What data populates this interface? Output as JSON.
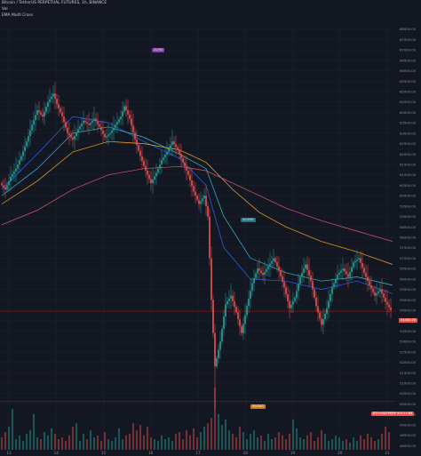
{
  "header": {
    "symbol_line": "Bitcoin / TetherUS PERPETUAL FUTURES, 1h, BINANCE",
    "volume_label": "Vol",
    "indicator_label": "EMA Multi Cross"
  },
  "badges": {
    "top_marker": "20/50",
    "mid_marker": "20/200",
    "vol_marker": "50/200",
    "price_tag": "54450.00",
    "pair_tag": "BTCUSDTPERP",
    "pair_price": "50111.88"
  },
  "colors": {
    "background": "#131722",
    "grid": "#1e2230",
    "up": "#26a69a",
    "down": "#ef5350",
    "ema_fast": "#2962ff",
    "ema_mid": "#26c6da",
    "ema_slow": "#f5a623",
    "ema_long": "#e0556a",
    "axis_text": "#8a8f9c"
  },
  "chart_data": {
    "type": "candlestick",
    "x_ticks": [
      "13",
      "14",
      "15",
      "16",
      "17",
      "18",
      "19",
      "20",
      "21"
    ],
    "y_ticks": [
      48000,
      48500,
      49000,
      49500,
      50000,
      50500,
      51000,
      51500,
      52000,
      52500,
      53000,
      53500,
      54000,
      54500,
      55000,
      55500,
      56000,
      56500,
      57000,
      57500,
      58000,
      58500,
      59000,
      59500,
      60000,
      60500,
      61000,
      61500,
      62000,
      62500,
      63000,
      63500,
      64000,
      64500,
      65000,
      65500,
      66000,
      66500,
      67000,
      67500,
      68000
    ],
    "ylim": [
      47800,
      68200
    ],
    "price_path": [
      [
        0,
        60600
      ],
      [
        3,
        60300
      ],
      [
        6,
        60900
      ],
      [
        9,
        61300
      ],
      [
        12,
        61900
      ],
      [
        15,
        62600
      ],
      [
        18,
        63400
      ],
      [
        21,
        64100
      ],
      [
        24,
        63800
      ],
      [
        27,
        64500
      ],
      [
        30,
        64900
      ],
      [
        32,
        64400
      ],
      [
        35,
        63800
      ],
      [
        38,
        63000
      ],
      [
        41,
        62700
      ],
      [
        44,
        63200
      ],
      [
        47,
        63600
      ],
      [
        50,
        63400
      ],
      [
        53,
        63700
      ],
      [
        56,
        63300
      ],
      [
        59,
        62800
      ],
      [
        62,
        63000
      ],
      [
        65,
        63400
      ],
      [
        68,
        63800
      ],
      [
        70,
        64300
      ],
      [
        73,
        63700
      ],
      [
        76,
        62700
      ],
      [
        79,
        61900
      ],
      [
        82,
        61200
      ],
      [
        85,
        60600
      ],
      [
        88,
        61100
      ],
      [
        91,
        61700
      ],
      [
        94,
        62100
      ],
      [
        97,
        62600
      ],
      [
        100,
        62200
      ],
      [
        103,
        61600
      ],
      [
        106,
        61000
      ],
      [
        109,
        60200
      ],
      [
        112,
        59600
      ],
      [
        115,
        60000
      ],
      [
        117,
        59000
      ],
      [
        119,
        55000
      ],
      [
        121,
        51800
      ],
      [
        124,
        53000
      ],
      [
        127,
        54800
      ],
      [
        130,
        55200
      ],
      [
        133,
        54400
      ],
      [
        136,
        53400
      ],
      [
        139,
        54700
      ],
      [
        142,
        55800
      ],
      [
        145,
        56500
      ],
      [
        148,
        56200
      ],
      [
        151,
        56600
      ],
      [
        154,
        57000
      ],
      [
        157,
        56400
      ],
      [
        160,
        55600
      ],
      [
        163,
        54600
      ],
      [
        166,
        55100
      ],
      [
        169,
        56100
      ],
      [
        172,
        56700
      ],
      [
        175,
        55900
      ],
      [
        178,
        54700
      ],
      [
        181,
        53800
      ],
      [
        184,
        54600
      ],
      [
        187,
        55600
      ],
      [
        190,
        56200
      ],
      [
        193,
        56500
      ],
      [
        196,
        56100
      ],
      [
        199,
        56800
      ],
      [
        202,
        57000
      ],
      [
        205,
        56300
      ],
      [
        208,
        55700
      ],
      [
        211,
        55200
      ],
      [
        214,
        55500
      ],
      [
        217,
        54900
      ],
      [
        220,
        54500
      ]
    ],
    "ema_series": [
      {
        "points": [
          [
            0,
            60300
          ],
          [
            20,
            62000
          ],
          [
            40,
            63800
          ],
          [
            60,
            63500
          ],
          [
            80,
            62600
          ],
          [
            100,
            61800
          ],
          [
            115,
            60500
          ],
          [
            125,
            57500
          ],
          [
            140,
            56000
          ],
          [
            160,
            55900
          ],
          [
            180,
            55500
          ],
          [
            200,
            55900
          ],
          [
            220,
            55300
          ]
        ]
      },
      {
        "points": [
          [
            0,
            60000
          ],
          [
            20,
            61300
          ],
          [
            40,
            63000
          ],
          [
            60,
            63300
          ],
          [
            80,
            62800
          ],
          [
            100,
            62000
          ],
          [
            115,
            61300
          ],
          [
            125,
            59000
          ],
          [
            140,
            57000
          ],
          [
            160,
            56300
          ],
          [
            180,
            55900
          ],
          [
            200,
            56100
          ],
          [
            220,
            55700
          ]
        ]
      },
      {
        "points": [
          [
            0,
            59600
          ],
          [
            20,
            60700
          ],
          [
            40,
            62100
          ],
          [
            60,
            62600
          ],
          [
            80,
            62500
          ],
          [
            100,
            62200
          ],
          [
            115,
            61600
          ],
          [
            130,
            60300
          ],
          [
            145,
            59200
          ],
          [
            160,
            58500
          ],
          [
            180,
            57800
          ],
          [
            200,
            57300
          ],
          [
            220,
            56700
          ]
        ]
      },
      {
        "points": [
          [
            0,
            58600
          ],
          [
            20,
            59300
          ],
          [
            40,
            60300
          ],
          [
            60,
            61000
          ],
          [
            80,
            61300
          ],
          [
            100,
            61400
          ],
          [
            115,
            61200
          ],
          [
            130,
            60600
          ],
          [
            145,
            60000
          ],
          [
            160,
            59400
          ],
          [
            180,
            58800
          ],
          [
            200,
            58300
          ],
          [
            220,
            57800
          ]
        ]
      }
    ],
    "volume": [
      [
        0,
        14
      ],
      [
        2,
        20
      ],
      [
        4,
        26
      ],
      [
        6,
        46
      ],
      [
        8,
        12
      ],
      [
        10,
        16
      ],
      [
        12,
        10
      ],
      [
        14,
        18
      ],
      [
        16,
        22
      ],
      [
        18,
        40
      ],
      [
        20,
        14
      ],
      [
        22,
        12
      ],
      [
        24,
        20
      ],
      [
        26,
        16
      ],
      [
        28,
        24
      ],
      [
        30,
        18
      ],
      [
        32,
        12
      ],
      [
        34,
        14
      ],
      [
        36,
        10
      ],
      [
        38,
        16
      ],
      [
        40,
        26
      ],
      [
        42,
        30
      ],
      [
        44,
        10
      ],
      [
        46,
        18
      ],
      [
        48,
        12
      ],
      [
        50,
        22
      ],
      [
        52,
        14
      ],
      [
        54,
        16
      ],
      [
        56,
        10
      ],
      [
        58,
        20
      ],
      [
        60,
        12
      ],
      [
        62,
        10
      ],
      [
        64,
        14
      ],
      [
        66,
        24
      ],
      [
        68,
        12
      ],
      [
        70,
        16
      ],
      [
        72,
        18
      ],
      [
        74,
        30
      ],
      [
        76,
        22
      ],
      [
        78,
        28
      ],
      [
        80,
        16
      ],
      [
        82,
        26
      ],
      [
        84,
        14
      ],
      [
        86,
        12
      ],
      [
        88,
        10
      ],
      [
        90,
        16
      ],
      [
        92,
        12
      ],
      [
        94,
        14
      ],
      [
        96,
        10
      ],
      [
        98,
        18
      ],
      [
        100,
        20
      ],
      [
        102,
        12
      ],
      [
        104,
        22
      ],
      [
        106,
        16
      ],
      [
        108,
        24
      ],
      [
        110,
        14
      ],
      [
        112,
        20
      ],
      [
        114,
        26
      ],
      [
        116,
        30
      ],
      [
        118,
        36
      ],
      [
        120,
        70
      ],
      [
        122,
        40
      ],
      [
        124,
        28
      ],
      [
        126,
        34
      ],
      [
        128,
        22
      ],
      [
        130,
        18
      ],
      [
        132,
        14
      ],
      [
        134,
        26
      ],
      [
        136,
        20
      ],
      [
        138,
        12
      ],
      [
        140,
        18
      ],
      [
        142,
        22
      ],
      [
        144,
        14
      ],
      [
        146,
        16
      ],
      [
        148,
        10
      ],
      [
        150,
        18
      ],
      [
        152,
        12
      ],
      [
        154,
        14
      ],
      [
        156,
        20
      ],
      [
        158,
        16
      ],
      [
        160,
        12
      ],
      [
        162,
        18
      ],
      [
        164,
        34
      ],
      [
        166,
        24
      ],
      [
        168,
        14
      ],
      [
        170,
        12
      ],
      [
        172,
        16
      ],
      [
        174,
        20
      ],
      [
        176,
        10
      ],
      [
        178,
        14
      ],
      [
        180,
        22
      ],
      [
        182,
        18
      ],
      [
        184,
        10
      ],
      [
        186,
        12
      ],
      [
        188,
        16
      ],
      [
        190,
        14
      ],
      [
        192,
        10
      ],
      [
        194,
        12
      ],
      [
        196,
        8
      ],
      [
        198,
        14
      ],
      [
        200,
        10
      ],
      [
        202,
        16
      ],
      [
        204,
        12
      ],
      [
        206,
        18
      ],
      [
        208,
        14
      ],
      [
        210,
        10
      ],
      [
        212,
        12
      ],
      [
        214,
        18
      ],
      [
        216,
        26
      ],
      [
        218,
        20
      ]
    ]
  }
}
